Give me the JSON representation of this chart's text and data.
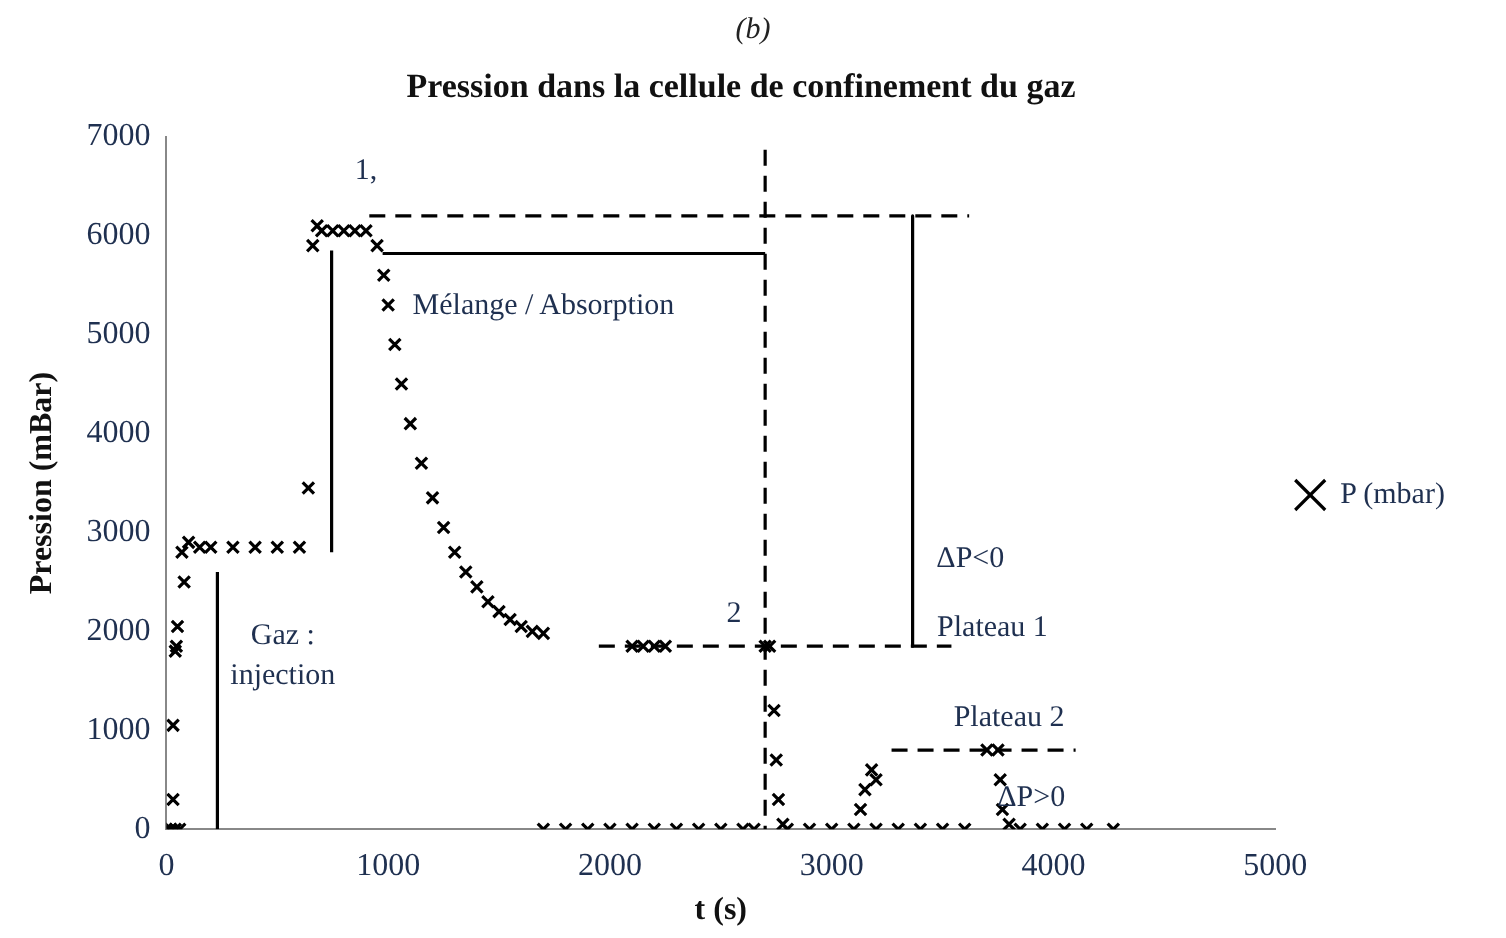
{
  "chart_data": {
    "type": "scatter",
    "title": "Pression dans la cellule de confinement du gaz",
    "xlabel": "t (s)",
    "ylabel": "Pression (mBar)",
    "xlim": [
      0,
      5000
    ],
    "xticks": [
      0,
      1000,
      2000,
      3000,
      4000,
      5000
    ],
    "ylim": [
      0,
      7000
    ],
    "yticks": [
      0,
      1000,
      2000,
      3000,
      4000,
      5000,
      6000,
      7000
    ],
    "grid": false,
    "legend": "right",
    "annotations": [
      "(b)",
      "1,",
      "2",
      "Mélange / Absorption",
      "Gaz :\ninjection",
      "ΔP<0",
      "Plateau 1",
      "Plateau 2",
      "ΔP>0"
    ],
    "series": [
      {
        "name": "P (mbar)",
        "color": "#000000",
        "marker": "cross",
        "x": [
          0,
          20,
          40,
          60,
          30,
          30,
          40,
          50,
          45,
          70,
          80,
          100,
          150,
          200,
          300,
          400,
          500,
          600,
          640,
          660,
          680,
          700,
          750,
          800,
          850,
          900,
          950,
          980,
          1000,
          1030,
          1060,
          1100,
          1150,
          1200,
          1250,
          1300,
          1350,
          1400,
          1450,
          1500,
          1550,
          1600,
          1650,
          1700,
          1700,
          1800,
          1900,
          2000,
          2100,
          2200,
          2300,
          2400,
          2500,
          2600,
          2650,
          2100,
          2150,
          2200,
          2250,
          2700,
          2720,
          2740,
          2750,
          2760,
          2780,
          2800,
          2900,
          3000,
          3100,
          3200,
          3300,
          3400,
          3500,
          3600,
          3130,
          3150,
          3180,
          3200,
          3700,
          3750,
          3760,
          3770,
          3800,
          3850,
          3950,
          4050,
          4150,
          4270
        ],
        "values": [
          0,
          0,
          0,
          0,
          300,
          1050,
          1800,
          2050,
          1850,
          2800,
          2500,
          2900,
          2850,
          2850,
          2850,
          2850,
          2850,
          2850,
          3450,
          5900,
          6100,
          6050,
          6050,
          6050,
          6050,
          6050,
          5900,
          5600,
          5300,
          4900,
          4500,
          4100,
          3700,
          3350,
          3050,
          2800,
          2600,
          2450,
          2300,
          2200,
          2120,
          2050,
          2000,
          1980,
          0,
          0,
          0,
          0,
          0,
          0,
          0,
          0,
          0,
          0,
          0,
          1850,
          1850,
          1850,
          1850,
          1850,
          1850,
          1200,
          700,
          300,
          50,
          0,
          0,
          0,
          0,
          0,
          0,
          0,
          0,
          0,
          200,
          400,
          600,
          500,
          800,
          800,
          500,
          200,
          50,
          0,
          0,
          0,
          0,
          0
        ]
      },
      {
        "type": "line",
        "color": "#000000",
        "line_style": "dashed",
        "marker": "none",
        "x": [
          915,
          3620
        ],
        "values": [
          6200,
          6200
        ]
      },
      {
        "type": "line",
        "color": "#000000",
        "line_style": "dashed",
        "marker": "none",
        "x": [
          1950,
          3540
        ],
        "values": [
          1850,
          1850
        ]
      },
      {
        "type": "line",
        "color": "#000000",
        "line_style": "dashed",
        "marker": "none",
        "x": [
          3270,
          4100
        ],
        "values": [
          800,
          800
        ]
      },
      {
        "type": "line",
        "color": "#000000",
        "line_style": "dashed",
        "marker": "none",
        "x": [
          2700,
          2700
        ],
        "values": [
          6870,
          0
        ]
      },
      {
        "type": "line",
        "color": "#000000",
        "line_style": "solid",
        "marker": "none",
        "x": [
          230,
          230
        ],
        "values": [
          0,
          2600
        ]
      },
      {
        "type": "line",
        "color": "#000000",
        "line_style": "solid",
        "marker": "none",
        "x": [
          745,
          745
        ],
        "values": [
          2800,
          5850
        ]
      },
      {
        "type": "line",
        "color": "#000000",
        "line_style": "solid",
        "marker": "none",
        "x": [
          975,
          2700
        ],
        "values": [
          5820,
          5820
        ]
      },
      {
        "type": "line",
        "color": "#000000",
        "line_style": "solid",
        "marker": "none",
        "x": [
          3365,
          3365
        ],
        "values": [
          6200,
          1850
        ]
      }
    ]
  }
}
